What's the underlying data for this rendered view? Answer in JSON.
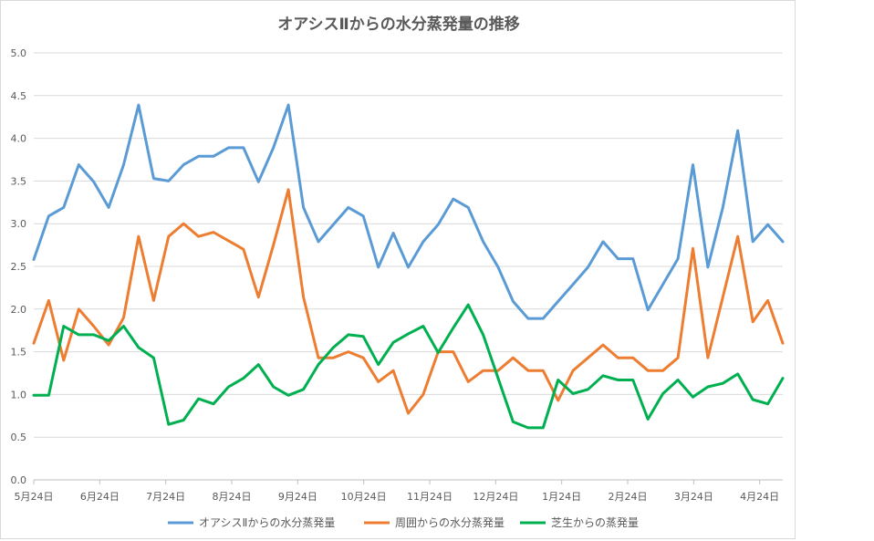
{
  "chart_data": {
    "type": "line",
    "title": "オアシスⅡからの水分蒸発量の推移",
    "xlabel": "",
    "ylabel": "",
    "ylim": [
      0,
      5
    ],
    "yticks": [
      "0.0",
      "0.5",
      "1.0",
      "1.5",
      "2.0",
      "2.5",
      "3.0",
      "3.5",
      "4.0",
      "4.5",
      "5.0"
    ],
    "xtick_labels": [
      "5月24日",
      "6月24日",
      "7月24日",
      "8月24日",
      "9月24日",
      "10月24日",
      "11月24日",
      "12月24日",
      "1月24日",
      "2月24日",
      "3月24日",
      "4月24日"
    ],
    "x_count": 51,
    "grid": true,
    "legend_position": "bottom",
    "series": [
      {
        "name": "オアシスⅡからの水分蒸発量",
        "color": "#5b9bd5",
        "values": [
          2.58,
          3.09,
          3.19,
          3.69,
          3.49,
          3.19,
          3.69,
          4.39,
          3.53,
          3.5,
          3.69,
          3.79,
          3.79,
          3.89,
          3.89,
          3.49,
          3.89,
          4.39,
          3.19,
          2.79,
          2.99,
          3.19,
          3.09,
          2.49,
          2.89,
          2.49,
          2.79,
          2.99,
          3.29,
          3.19,
          2.79,
          2.49,
          2.09,
          1.89,
          1.89,
          2.09,
          2.29,
          2.49,
          2.79,
          2.59,
          2.59,
          1.99,
          2.29,
          2.59,
          3.69,
          2.49,
          3.19,
          4.09,
          2.79,
          2.99,
          2.79
        ]
      },
      {
        "name": "周囲からの水分蒸発量",
        "color": "#ed7d31",
        "values": [
          1.6,
          2.1,
          1.4,
          2.0,
          1.8,
          1.58,
          1.9,
          2.85,
          2.1,
          2.85,
          3.0,
          2.85,
          2.9,
          2.8,
          2.7,
          2.14,
          2.75,
          3.4,
          2.14,
          1.43,
          1.43,
          1.5,
          1.43,
          1.15,
          1.28,
          0.78,
          1.0,
          1.5,
          1.5,
          1.15,
          1.28,
          1.28,
          1.43,
          1.28,
          1.28,
          0.93,
          1.28,
          1.43,
          1.58,
          1.43,
          1.43,
          1.28,
          1.28,
          1.43,
          2.71,
          1.43,
          2.14,
          2.85,
          1.85,
          2.1,
          1.6
        ]
      },
      {
        "name": "芝生からの蒸発量",
        "color": "#00b050",
        "values": [
          0.99,
          0.99,
          1.8,
          1.7,
          1.7,
          1.63,
          1.8,
          1.55,
          1.43,
          0.65,
          0.7,
          0.95,
          0.89,
          1.09,
          1.19,
          1.35,
          1.09,
          0.99,
          1.06,
          1.35,
          1.55,
          1.7,
          1.68,
          1.35,
          1.61,
          1.71,
          1.8,
          1.49,
          1.78,
          2.05,
          1.7,
          1.19,
          0.68,
          0.61,
          0.61,
          1.17,
          1.01,
          1.06,
          1.22,
          1.17,
          1.17,
          0.71,
          1.01,
          1.17,
          0.97,
          1.09,
          1.13,
          1.24,
          0.94,
          0.89,
          1.19
        ]
      }
    ]
  }
}
